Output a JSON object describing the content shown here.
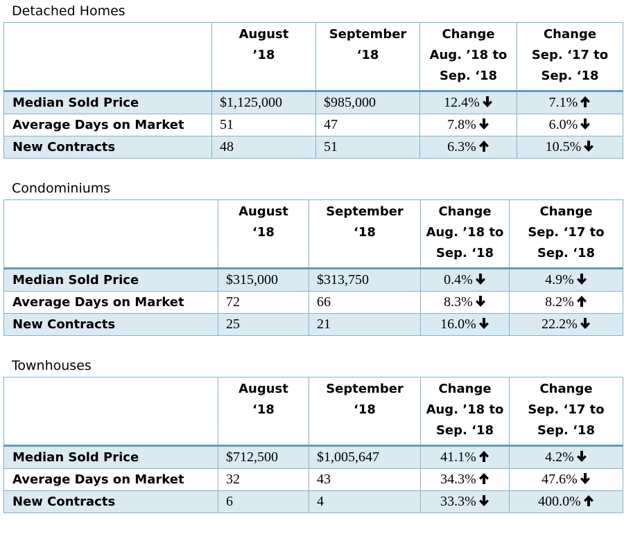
{
  "tables": [
    {
      "title": "Detached Homes",
      "headers": [
        "",
        "August ’18",
        "September ‘18",
        "Change Aug. ’18 to Sep. ‘18",
        "Change Sep. ‘17 to Sep. ‘18"
      ],
      "header_lines": [
        [
          ""
        ],
        [
          "August",
          "’18"
        ],
        [
          "September",
          "‘18"
        ],
        [
          "Change",
          "Aug. ’18 to",
          "Sep. ‘18"
        ],
        [
          "Change",
          "Sep. ‘17 to",
          "Sep. ‘18"
        ]
      ],
      "rows": [
        {
          "label": "Median Sold Price",
          "aug": "$1,125,000",
          "sep": "$985,000",
          "chg1": "12.4%",
          "dir1": "down",
          "chg2": "7.1%",
          "dir2": "up"
        },
        {
          "label": "Average Days on Market",
          "aug": "51",
          "sep": "47",
          "chg1": "7.8%",
          "dir1": "down",
          "chg2": "6.0%",
          "dir2": "down"
        },
        {
          "label": "New Contracts",
          "aug": "48",
          "sep": "51",
          "chg1": "6.3%",
          "dir1": "up",
          "chg2": "10.5%",
          "dir2": "down"
        }
      ]
    },
    {
      "title": "Condominiums",
      "header_lines": [
        [
          ""
        ],
        [
          "August",
          "‘18"
        ],
        [
          "September",
          "‘18"
        ],
        [
          "Change",
          "Aug. ’18 to",
          "Sep. ‘18"
        ],
        [
          "Change",
          "Sep. ‘17 to",
          "Sep. ‘18"
        ]
      ],
      "rows": [
        {
          "label": "Median Sold Price",
          "aug": "$315,000",
          "sep": "$313,750",
          "chg1": "0.4%",
          "dir1": "down",
          "chg2": "4.9%",
          "dir2": "down"
        },
        {
          "label": "Average Days on Market",
          "aug": "72",
          "sep": "66",
          "chg1": "8.3%",
          "dir1": "down",
          "chg2": "8.2%",
          "dir2": "up"
        },
        {
          "label": "New Contracts",
          "aug": "25",
          "sep": "21",
          "chg1": "16.0%",
          "dir1": "down",
          "chg2": "22.2%",
          "dir2": "down"
        }
      ]
    },
    {
      "title": "Townhouses",
      "header_lines": [
        [
          ""
        ],
        [
          "August",
          "‘18"
        ],
        [
          "September",
          "‘18"
        ],
        [
          "Change",
          "Aug. ’18 to",
          "Sep. ‘18"
        ],
        [
          "Change",
          "Sep. ‘17 to",
          "Sep. ‘18"
        ]
      ],
      "rows": [
        {
          "label": "Median Sold Price",
          "aug": "$712,500",
          "sep": "$1,005,647",
          "chg1": "41.1%",
          "dir1": "up",
          "chg2": "4.2%",
          "dir2": "down"
        },
        {
          "label": "Average Days on Market",
          "aug": "32",
          "sep": "43",
          "chg1": "34.3%",
          "dir1": "up",
          "chg2": "47.6%",
          "dir2": "down"
        },
        {
          "label": "New Contracts",
          "aug": "6",
          "sep": "4",
          "chg1": "33.3%",
          "dir1": "down",
          "chg2": "400.0%",
          "dir2": "up"
        }
      ]
    }
  ],
  "colors": {
    "border": "#7fb3cf",
    "shade": "#dbe9f1"
  }
}
